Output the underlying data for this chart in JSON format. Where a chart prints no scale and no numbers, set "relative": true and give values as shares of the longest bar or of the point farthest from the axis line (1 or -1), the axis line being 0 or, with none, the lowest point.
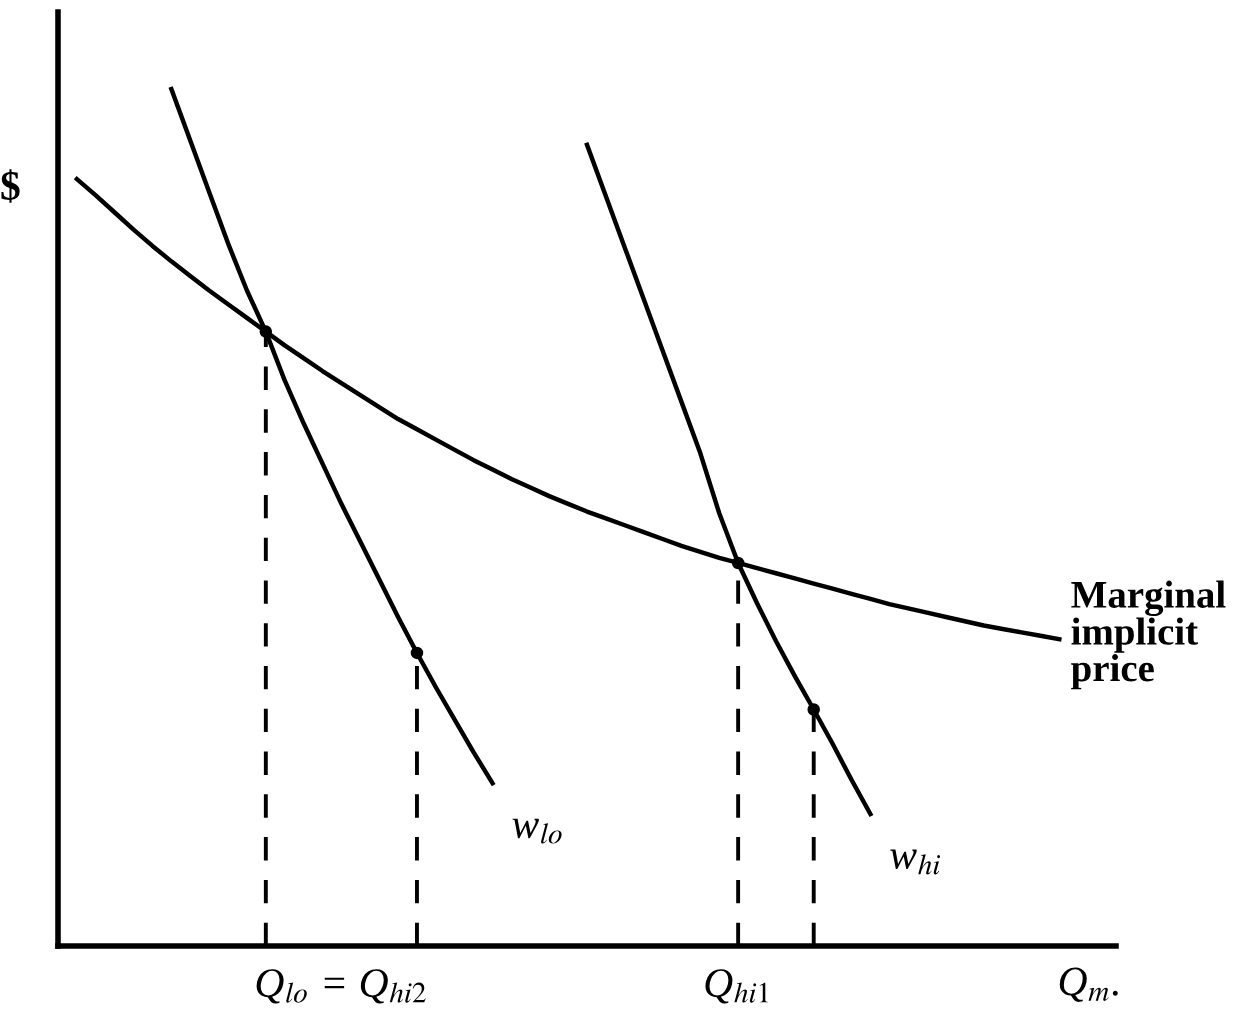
{
  "chart_data": {
    "type": "line",
    "relative": true,
    "ylabel": "$",
    "xlabel": "Q$_{m}$.",
    "categories": [
      null,
      null,
      null,
      null,
      null,
      null,
      null,
      null,
      null,
      null,
      null,
      null,
      null,
      null,
      null,
      "Q$_{lo}$ = Q$_{hi2}$",
      null,
      null,
      null,
      null,
      null,
      null,
      null,
      null,
      null,
      null,
      null,
      null,
      null,
      null,
      null,
      null,
      null,
      null,
      null,
      null,
      "Q$_{hi1}$",
      null,
      null,
      null,
      null,
      null,
      null,
      null,
      null,
      null,
      null,
      null,
      null,
      null,
      null,
      null,
      null,
      null,
      null,
      null,
      null
    ],
    "tick_labels": "x",
    "grid": false,
    "legend": false,
    "marker": "none",
    "series": [
      {
        "name": "Marginal implicit price",
        "color": "#000000",
        "line_style": "solid",
        "values": [
          null,
          0.895,
          0.876,
          0.856,
          0.836,
          0.817,
          0.799,
          0.782,
          0.765,
          0.749,
          0.733,
          0.717,
          0.701,
          0.686,
          0.671,
          0.657,
          0.643,
          0.629,
          0.615,
          0.603,
          0.591,
          0.579,
          0.567,
          0.556,
          0.545,
          0.535,
          0.525,
          0.516,
          0.507,
          0.499,
          0.491,
          0.483,
          0.475,
          0.467,
          0.46,
          0.453,
          0.447,
          0.441,
          0.435,
          0.429,
          0.423,
          0.417,
          0.411,
          0.405,
          0.399,
          0.394,
          0.389,
          0.384,
          0.379,
          0.374,
          0.37,
          0.366,
          0.362,
          0.358,
          null,
          null,
          null
        ]
      },
      {
        "name": "w$_{lo}$",
        "color": "#000000",
        "line_style": "solid",
        "values": [
          null,
          null,
          null,
          null,
          null,
          null,
          1,
          0.94,
          0.88,
          0.82,
          0.765,
          0.717,
          0.66,
          0.61,
          0.563,
          0.516,
          0.472,
          0.428,
          0.384,
          0.342,
          0.302,
          0.264,
          0.226,
          0.19,
          null,
          null,
          null,
          null,
          null,
          null,
          null,
          null,
          null,
          null,
          null,
          null,
          null,
          null,
          null,
          null,
          null,
          null,
          null,
          null,
          null,
          null,
          null,
          null,
          null,
          null,
          null,
          null,
          null,
          null,
          null,
          null,
          null
        ]
      },
      {
        "name": "w$_{hi}$",
        "color": "#000000",
        "line_style": "solid",
        "values": [
          null,
          null,
          null,
          null,
          null,
          null,
          null,
          null,
          null,
          null,
          null,
          null,
          null,
          null,
          null,
          null,
          null,
          null,
          null,
          null,
          null,
          null,
          null,
          null,
          null,
          null,
          null,
          null,
          0.935,
          0.875,
          0.815,
          0.755,
          0.695,
          0.635,
          0.575,
          0.505,
          0.447,
          0.4,
          0.356,
          0.315,
          0.276,
          0.236,
          0.194,
          0.154,
          null,
          null,
          null,
          null,
          null,
          null,
          null,
          null,
          null,
          null,
          null,
          null,
          null
        ]
      },
      {
        "type": "lollipop",
        "color": "#000000",
        "line_style": "dashed",
        "marker": "circle",
        "values": [
          null,
          null,
          null,
          null,
          null,
          null,
          null,
          null,
          null,
          null,
          null,
          0.717,
          null,
          null,
          null,
          null,
          null,
          null,
          null,
          0.342,
          null,
          null,
          null,
          null,
          null,
          null,
          null,
          null,
          null,
          null,
          null,
          null,
          null,
          null,
          null,
          null,
          0.447,
          null,
          null,
          null,
          0.276,
          null,
          null,
          null,
          null,
          null,
          null,
          null,
          null,
          null,
          null,
          null,
          null,
          null,
          null,
          null,
          null
        ]
      }
    ]
  }
}
